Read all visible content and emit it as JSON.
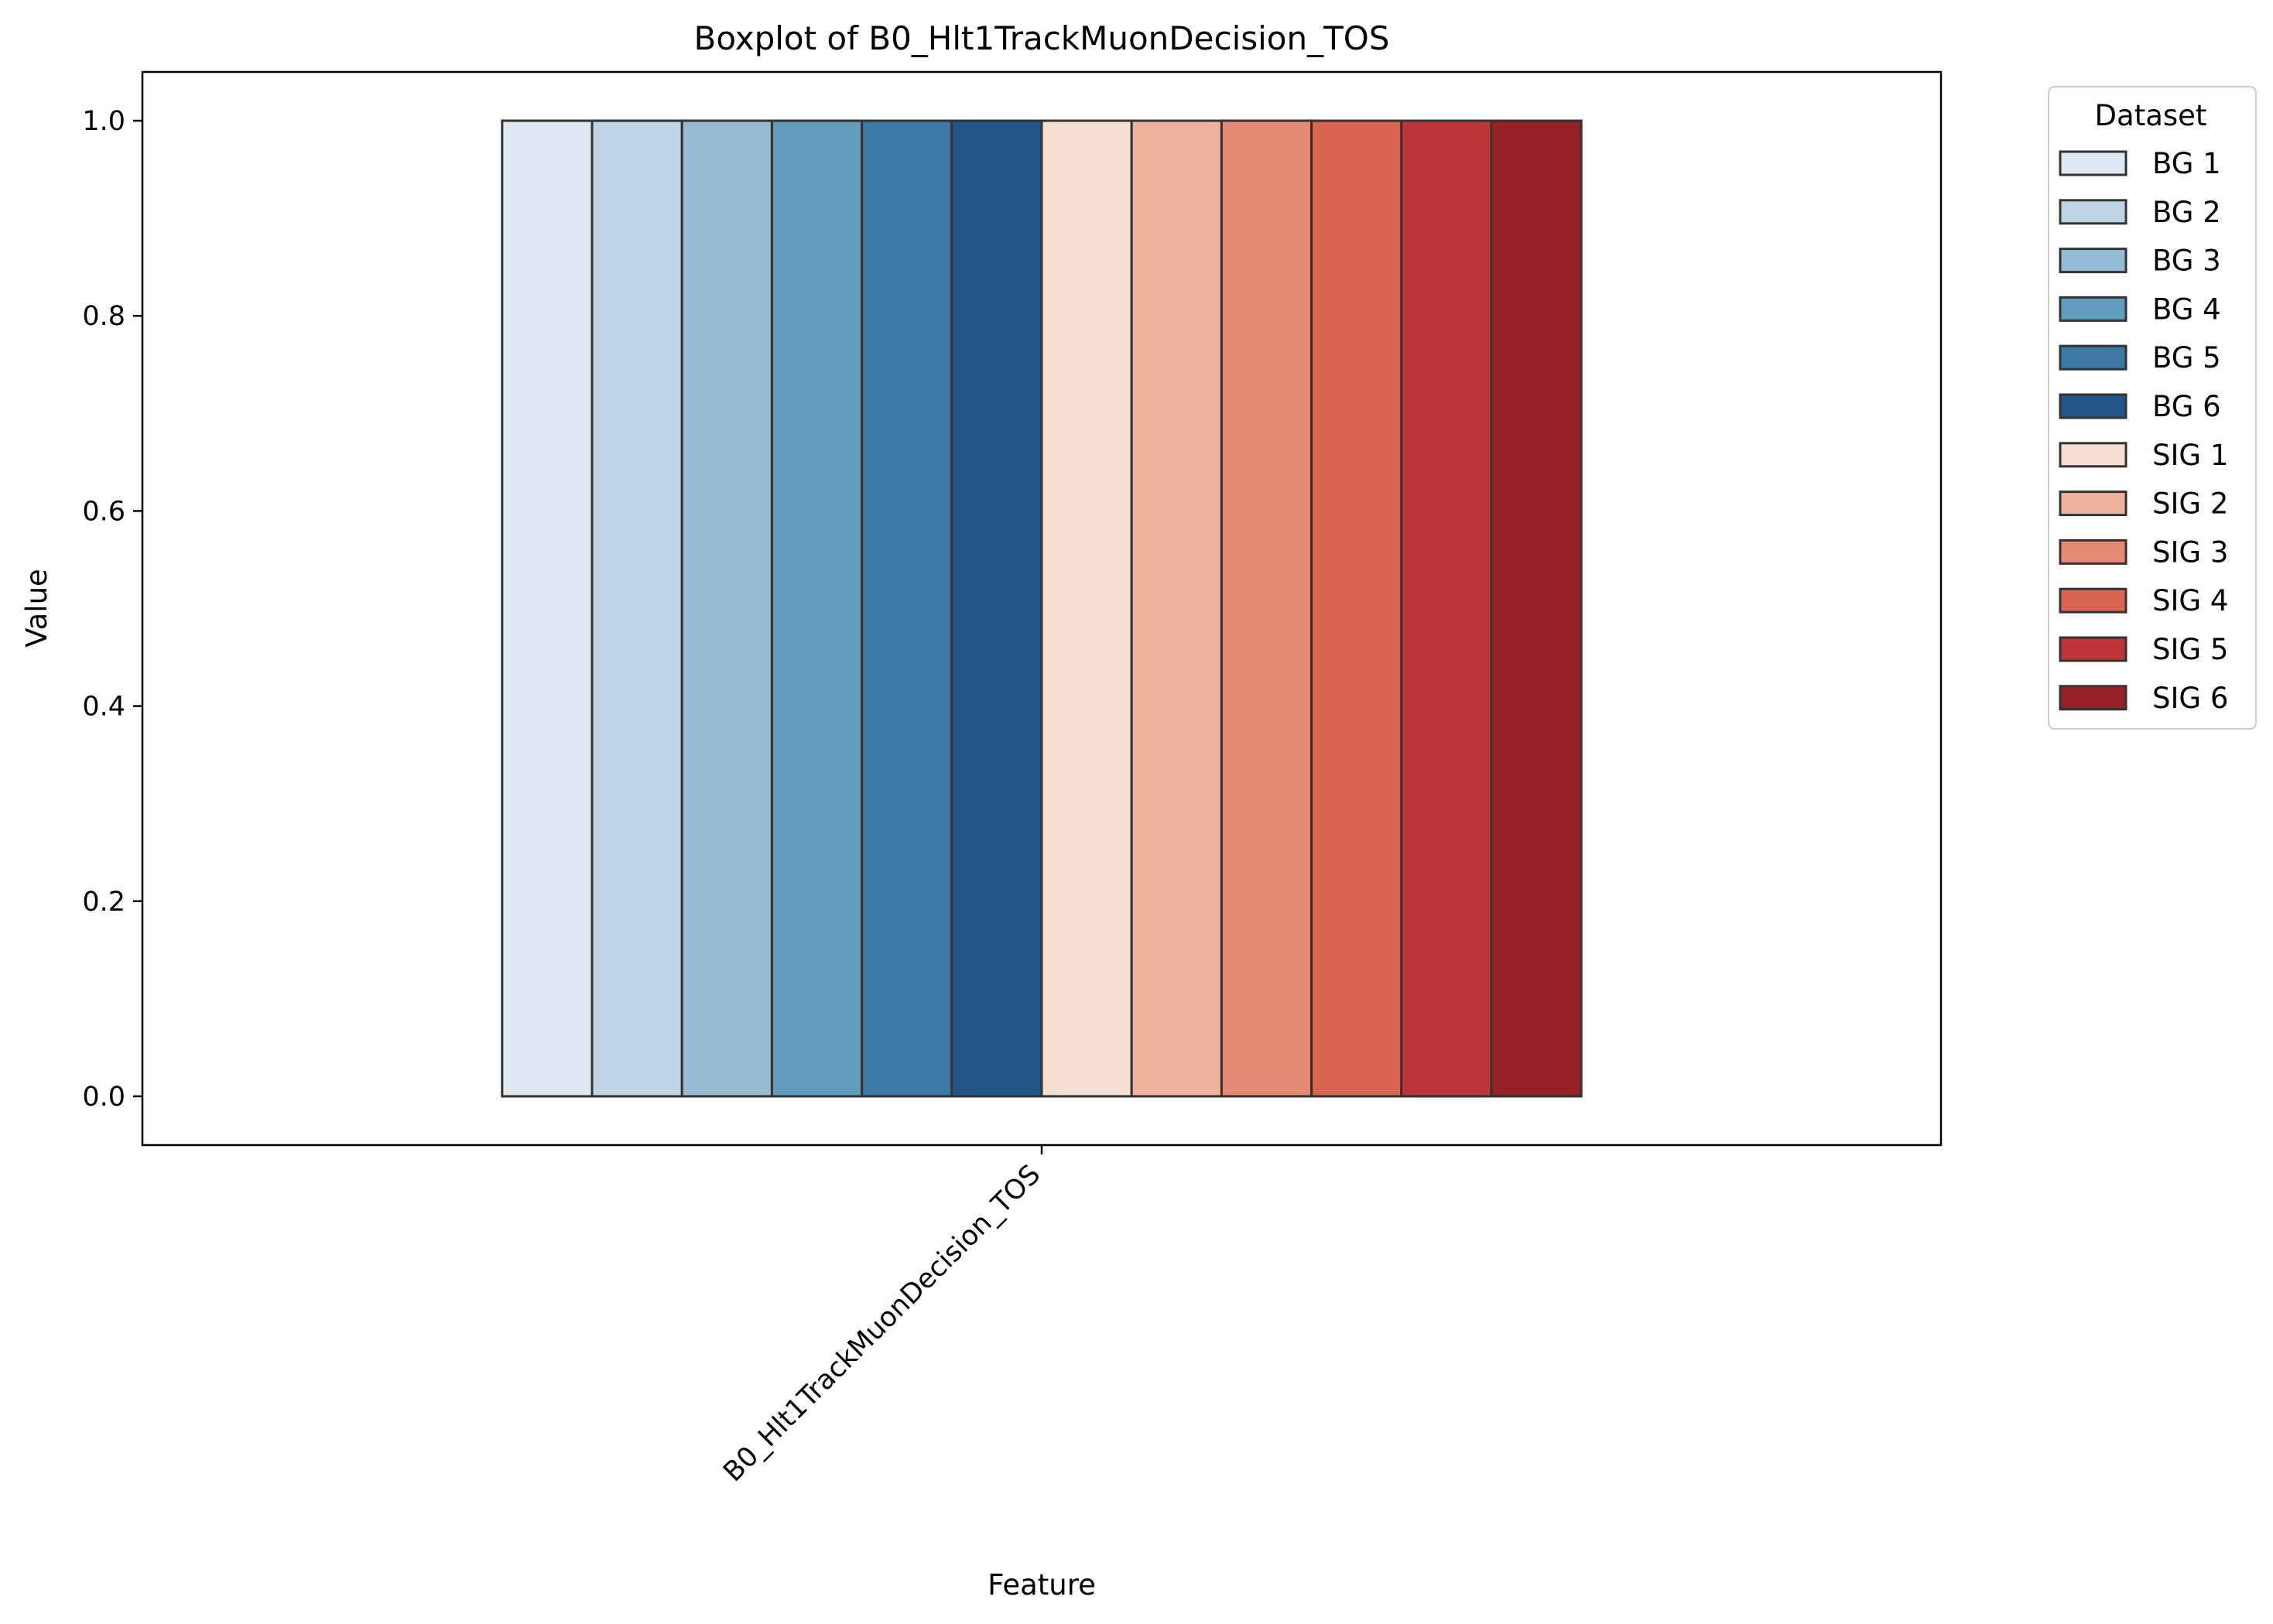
{
  "chart_data": {
    "type": "box",
    "title": "Boxplot of B0_Hlt1TrackMuonDecision_TOS",
    "xlabel": "Feature",
    "ylabel": "Value",
    "categories": [
      "B0_Hlt1TrackMuonDecision_TOS"
    ],
    "ylim": [
      -0.05,
      1.05
    ],
    "yticks": [
      "0.0",
      "0.2",
      "0.4",
      "0.6",
      "0.8",
      "1.0"
    ],
    "ytick_values": [
      0,
      0.2,
      0.4,
      0.6,
      0.8,
      1.0
    ],
    "grid": false,
    "legend": {
      "title": "Dataset",
      "placement": "outside-right-top"
    },
    "series": [
      {
        "name": "BG 1",
        "color": "#dde8f2",
        "q1": 0,
        "median": 0,
        "q3": 1,
        "whisker_low": 0,
        "whisker_high": 1
      },
      {
        "name": "BG 2",
        "color": "#bfd4e6",
        "q1": 0,
        "median": 0,
        "q3": 1,
        "whisker_low": 0,
        "whisker_high": 1
      },
      {
        "name": "BG 3",
        "color": "#94bcd4",
        "q1": 0,
        "median": 0,
        "q3": 1,
        "whisker_low": 0,
        "whisker_high": 1
      },
      {
        "name": "BG 4",
        "color": "#619bbd",
        "q1": 0,
        "median": 0,
        "q3": 1,
        "whisker_low": 0,
        "whisker_high": 1
      },
      {
        "name": "BG 5",
        "color": "#3b78a6",
        "q1": 0,
        "median": 0,
        "q3": 1,
        "whisker_low": 0,
        "whisker_high": 1
      },
      {
        "name": "BG 6",
        "color": "#215589",
        "q1": 0,
        "median": 0,
        "q3": 1,
        "whisker_low": 0,
        "whisker_high": 1
      },
      {
        "name": "SIG 1",
        "color": "#f5ddd2",
        "q1": 0,
        "median": 0,
        "q3": 1,
        "whisker_low": 0,
        "whisker_high": 1
      },
      {
        "name": "SIG 2",
        "color": "#efb29c",
        "q1": 0,
        "median": 0,
        "q3": 1,
        "whisker_low": 0,
        "whisker_high": 1
      },
      {
        "name": "SIG 3",
        "color": "#e68c75",
        "q1": 0,
        "median": 0,
        "q3": 1,
        "whisker_low": 0,
        "whisker_high": 1
      },
      {
        "name": "SIG 4",
        "color": "#da6352",
        "q1": 0,
        "median": 0,
        "q3": 1,
        "whisker_low": 0,
        "whisker_high": 1
      },
      {
        "name": "SIG 5",
        "color": "#be3539",
        "q1": 0,
        "median": 0,
        "q3": 1,
        "whisker_low": 0,
        "whisker_high": 1
      },
      {
        "name": "SIG 6",
        "color": "#952129",
        "q1": 0,
        "median": 0,
        "q3": 1,
        "whisker_low": 0,
        "whisker_high": 1
      }
    ]
  }
}
